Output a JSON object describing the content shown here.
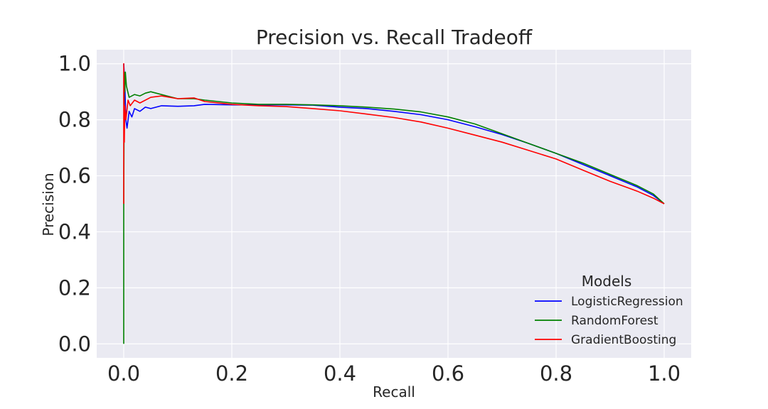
{
  "chart_data": {
    "type": "line",
    "title": "Precision vs. Recall Tradeoff",
    "xlabel": "Recall",
    "ylabel": "Precision",
    "xlim": [
      -0.05,
      1.05
    ],
    "ylim": [
      -0.05,
      1.05
    ],
    "xticks": [
      0.0,
      0.2,
      0.4,
      0.6,
      0.8,
      1.0
    ],
    "xtick_labels": [
      "0.0",
      "0.2",
      "0.4",
      "0.6",
      "0.8",
      "1.0"
    ],
    "yticks": [
      0.0,
      0.2,
      0.4,
      0.6,
      0.8,
      1.0
    ],
    "ytick_labels": [
      "0.0",
      "0.2",
      "0.4",
      "0.6",
      "0.8",
      "1.0"
    ],
    "grid": true,
    "legend": {
      "title": "Models",
      "position": "lower-right"
    },
    "series": [
      {
        "name": "LogisticRegression",
        "color": "#0000ff",
        "points": [
          [
            0.0,
            1.0
          ],
          [
            0.002,
            0.93
          ],
          [
            0.004,
            0.8
          ],
          [
            0.006,
            0.77
          ],
          [
            0.01,
            0.83
          ],
          [
            0.015,
            0.81
          ],
          [
            0.02,
            0.84
          ],
          [
            0.03,
            0.83
          ],
          [
            0.04,
            0.845
          ],
          [
            0.05,
            0.84
          ],
          [
            0.07,
            0.85
          ],
          [
            0.1,
            0.848
          ],
          [
            0.13,
            0.85
          ],
          [
            0.15,
            0.855
          ],
          [
            0.2,
            0.853
          ],
          [
            0.25,
            0.853
          ],
          [
            0.3,
            0.853
          ],
          [
            0.35,
            0.852
          ],
          [
            0.4,
            0.845
          ],
          [
            0.45,
            0.84
          ],
          [
            0.5,
            0.83
          ],
          [
            0.55,
            0.818
          ],
          [
            0.6,
            0.8
          ],
          [
            0.65,
            0.775
          ],
          [
            0.7,
            0.747
          ],
          [
            0.75,
            0.715
          ],
          [
            0.8,
            0.68
          ],
          [
            0.85,
            0.64
          ],
          [
            0.9,
            0.6
          ],
          [
            0.95,
            0.56
          ],
          [
            0.98,
            0.53
          ],
          [
            1.0,
            0.5
          ]
        ]
      },
      {
        "name": "RandomForest",
        "color": "#008000",
        "points": [
          [
            0.0,
            0.0
          ],
          [
            0.0,
            0.5
          ],
          [
            0.001,
            0.97
          ],
          [
            0.002,
            0.9
          ],
          [
            0.003,
            0.97
          ],
          [
            0.005,
            0.92
          ],
          [
            0.01,
            0.88
          ],
          [
            0.02,
            0.89
          ],
          [
            0.03,
            0.885
          ],
          [
            0.04,
            0.895
          ],
          [
            0.05,
            0.9
          ],
          [
            0.06,
            0.895
          ],
          [
            0.08,
            0.885
          ],
          [
            0.1,
            0.875
          ],
          [
            0.13,
            0.875
          ],
          [
            0.15,
            0.87
          ],
          [
            0.2,
            0.86
          ],
          [
            0.25,
            0.855
          ],
          [
            0.3,
            0.855
          ],
          [
            0.35,
            0.853
          ],
          [
            0.4,
            0.85
          ],
          [
            0.45,
            0.845
          ],
          [
            0.5,
            0.838
          ],
          [
            0.55,
            0.828
          ],
          [
            0.6,
            0.81
          ],
          [
            0.65,
            0.785
          ],
          [
            0.7,
            0.75
          ],
          [
            0.75,
            0.715
          ],
          [
            0.8,
            0.68
          ],
          [
            0.85,
            0.645
          ],
          [
            0.9,
            0.605
          ],
          [
            0.95,
            0.565
          ],
          [
            0.98,
            0.535
          ],
          [
            1.0,
            0.5
          ]
        ]
      },
      {
        "name": "GradientBoosting",
        "color": "#ff0000",
        "points": [
          [
            0.0,
            0.5
          ],
          [
            0.0,
            1.0
          ],
          [
            0.001,
            0.72
          ],
          [
            0.002,
            0.85
          ],
          [
            0.004,
            0.8
          ],
          [
            0.008,
            0.87
          ],
          [
            0.012,
            0.85
          ],
          [
            0.02,
            0.87
          ],
          [
            0.03,
            0.86
          ],
          [
            0.05,
            0.88
          ],
          [
            0.07,
            0.885
          ],
          [
            0.1,
            0.875
          ],
          [
            0.13,
            0.878
          ],
          [
            0.15,
            0.865
          ],
          [
            0.2,
            0.855
          ],
          [
            0.25,
            0.85
          ],
          [
            0.3,
            0.847
          ],
          [
            0.35,
            0.84
          ],
          [
            0.4,
            0.832
          ],
          [
            0.45,
            0.82
          ],
          [
            0.5,
            0.808
          ],
          [
            0.55,
            0.792
          ],
          [
            0.6,
            0.77
          ],
          [
            0.65,
            0.745
          ],
          [
            0.7,
            0.72
          ],
          [
            0.75,
            0.69
          ],
          [
            0.8,
            0.66
          ],
          [
            0.85,
            0.62
          ],
          [
            0.9,
            0.58
          ],
          [
            0.95,
            0.545
          ],
          [
            0.98,
            0.52
          ],
          [
            1.0,
            0.5
          ]
        ]
      }
    ]
  }
}
